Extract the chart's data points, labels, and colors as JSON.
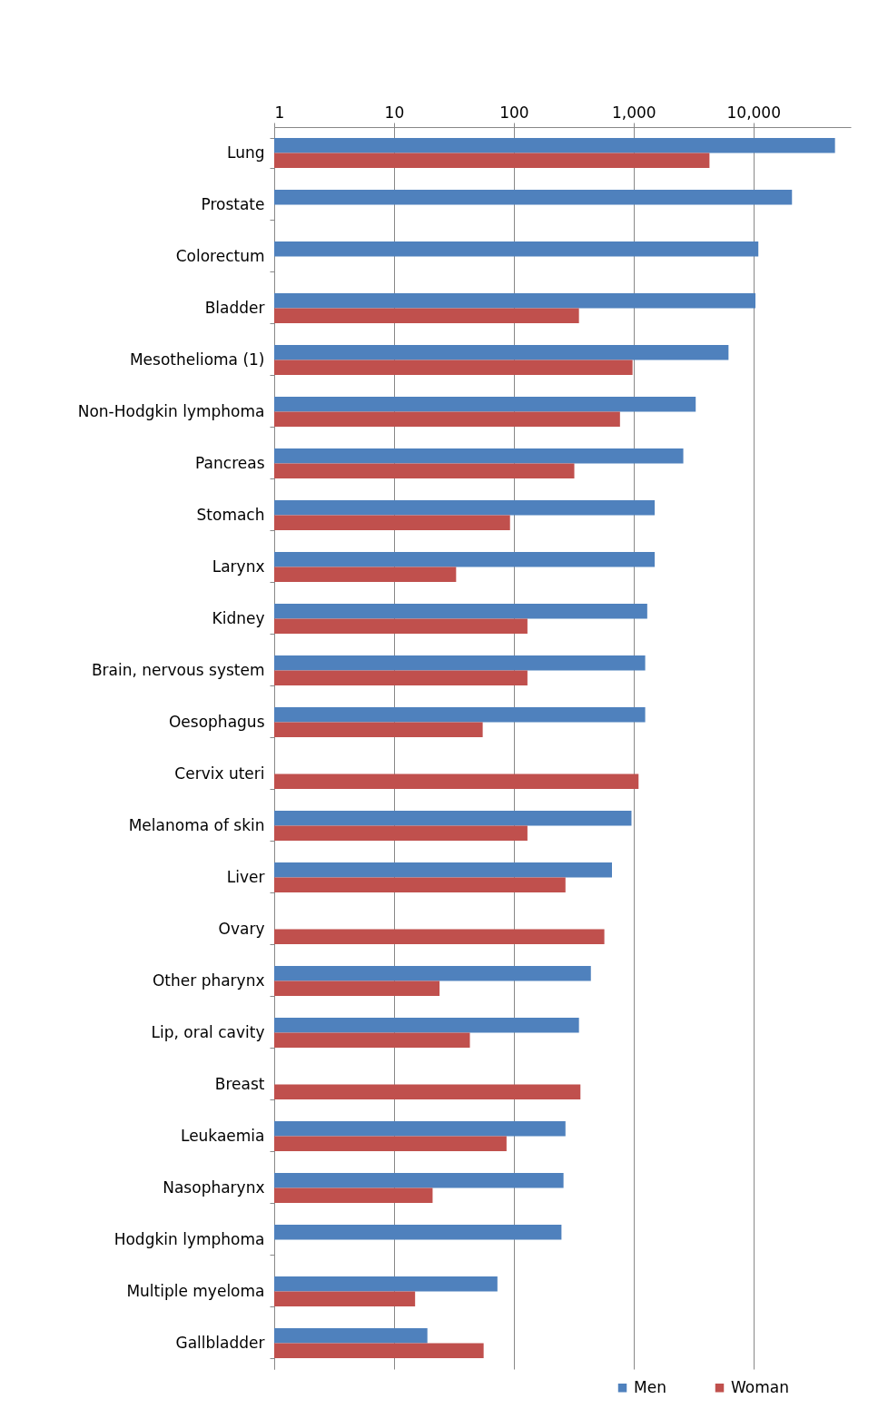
{
  "chart_data": {
    "type": "bar",
    "orientation": "horizontal",
    "log": "x",
    "grid": "x",
    "legend": "bottom right",
    "categories": [
      "Lung",
      "Prostate",
      "Colorectum",
      "Bladder",
      "Mesothelioma (1)",
      "Non-Hodgkin lymphoma",
      "Pancreas",
      "Stomach",
      "Larynx",
      "Kidney",
      "Brain, nervous system",
      "Oesophagus",
      "Cervix uteri",
      "Melanoma of skin",
      "Liver",
      "Ovary",
      "Other pharynx",
      "Lip, oral cavity",
      "Breast",
      "Leukaemia",
      "Nasopharynx",
      "Hodgkin lymphoma",
      "Multiple myeloma",
      "Gallbladder"
    ],
    "series": [
      {
        "name": "Men",
        "color": "#4f81bd",
        "values": [
          48000,
          21000,
          11000,
          10400,
          6200,
          3300,
          2600,
          1500,
          1500,
          1300,
          1250,
          1250,
          null,
          960,
          660,
          null,
          440,
          350,
          null,
          270,
          260,
          250,
          73,
          19
        ]
      },
      {
        "name": "Woman",
        "color": "#c0504d",
        "values": [
          4300,
          null,
          null,
          350,
          980,
          770,
          320,
          93,
          33,
          130,
          130,
          55,
          1100,
          130,
          270,
          570,
          24,
          43,
          360,
          87,
          21,
          null,
          15,
          56
        ]
      }
    ],
    "xlim": [
      1,
      65000
    ],
    "xticks": [
      1,
      10,
      100,
      {
        "value": 1000,
        "label": "1,000"
      },
      {
        "value": 10000,
        "label": "10,000"
      }
    ]
  }
}
